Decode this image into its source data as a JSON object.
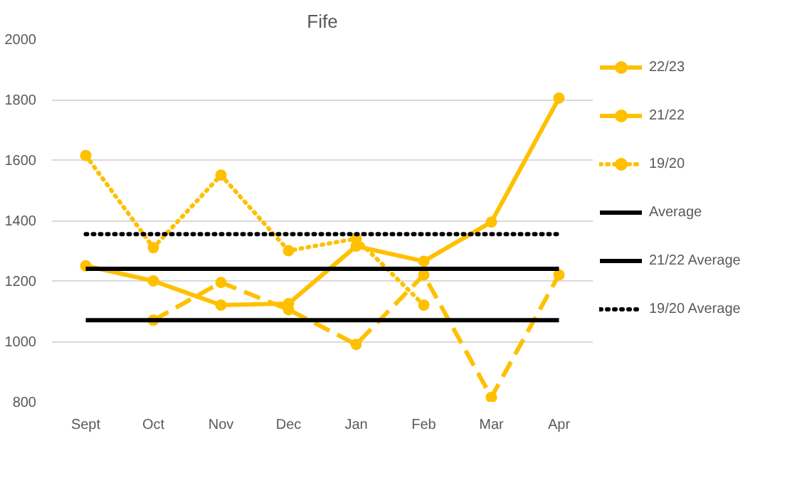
{
  "chart_data": {
    "type": "line",
    "title": "Fife",
    "categories": [
      "Sept",
      "Oct",
      "Nov",
      "Dec",
      "Jan",
      "Feb",
      "Mar",
      "Apr"
    ],
    "series": [
      {
        "name": "22/23",
        "color": "#ffc000",
        "line_style": "solid",
        "marker": "circle",
        "values": [
          1250,
          1200,
          1120,
          1125,
          1315,
          1265,
          1395,
          1805
        ]
      },
      {
        "name": "21/22",
        "color": "#ffc000",
        "line_style": "dashed",
        "marker": "circle",
        "values": [
          null,
          1070,
          1195,
          1105,
          990,
          1220,
          815,
          1220
        ]
      },
      {
        "name": "19/20",
        "color": "#ffc000",
        "line_style": "dotted",
        "marker": "circle",
        "values": [
          1615,
          1310,
          1550,
          1300,
          1340,
          1120,
          null,
          null
        ]
      },
      {
        "name": "Average",
        "color": "#000000",
        "line_style": "solid",
        "marker": "none",
        "values": [
          1240,
          1240,
          1240,
          1240,
          1240,
          1240,
          1240,
          1240
        ]
      },
      {
        "name": "21/22 Average",
        "color": "#000000",
        "line_style": "solid",
        "marker": "none",
        "values": [
          1070,
          1070,
          1070,
          1070,
          1070,
          1070,
          1070,
          1070
        ]
      },
      {
        "name": "19/20 Average",
        "color": "#000000",
        "line_style": "dotted",
        "marker": "none",
        "values": [
          1355,
          1355,
          1355,
          1355,
          1355,
          1355,
          1355,
          1355
        ]
      }
    ],
    "ylim": [
      800,
      2000
    ],
    "yticks": [
      800,
      1000,
      1200,
      1400,
      1600,
      1800,
      2000
    ],
    "grid": "y",
    "legend": "right"
  }
}
